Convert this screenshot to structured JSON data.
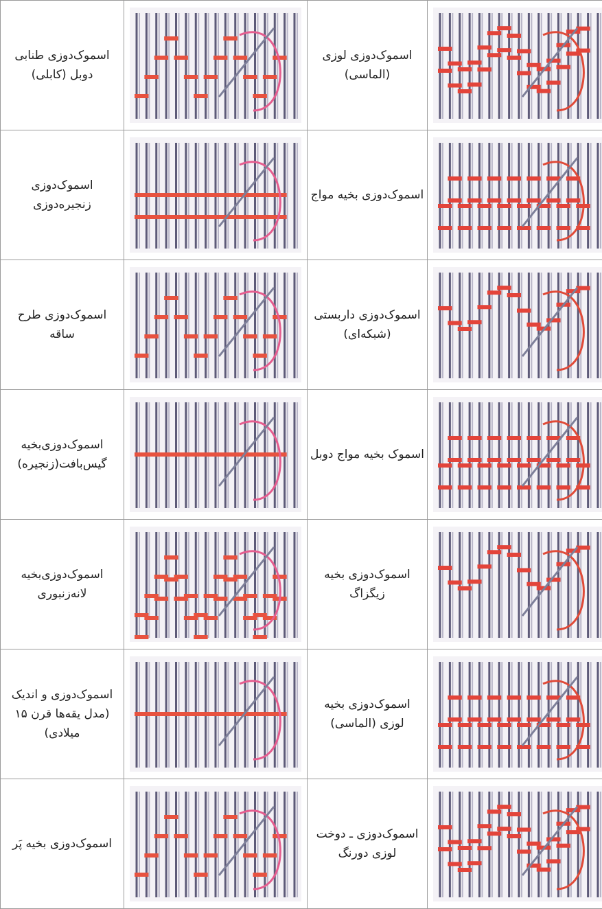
{
  "table": {
    "rows": [
      [
        "اسموک‌دوزی لوزی (الماسی)",
        "اسموک‌دوزی طنابی دوبل (کابلی)"
      ],
      [
        "اسموک‌دوزی بخیه مواج",
        "اسموک‌دوزی زنجیره‌دوزی"
      ],
      [
        "اسموک‌دوزی داربستی (شبکه‌ای)",
        "اسموک‌دوزی طرح ساقه"
      ],
      [
        "اسموک بخیه مواج دوبل",
        "اسموک‌دوزی‌بخیه گیس‌بافت(زنجیره)"
      ],
      [
        "اسموک‌دوزی بخیه زیگزاگ",
        "اسموک‌دوزی‌بخیه لانه‌زنبوری"
      ],
      [
        "اسموک‌دوزی بخیه لوزی (الماسی)",
        "اسموک‌دوزی و اندیک (مدل یقه‌ها قرن ۱۵ میلادی)"
      ],
      [
        "اسموک‌دوزی ـ دوخت لوزی دورنگ",
        "اسموک‌دوزی بخیه پَر"
      ]
    ]
  }
}
